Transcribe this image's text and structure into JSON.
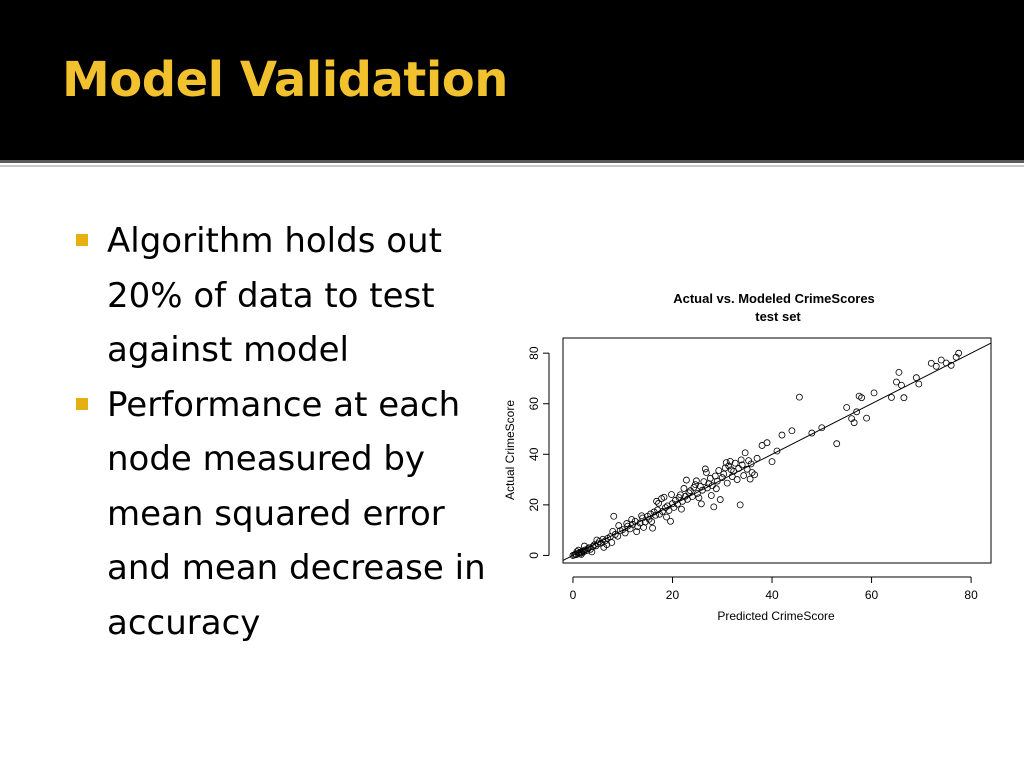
{
  "slide": {
    "title": "Model Validation",
    "title_color": "#f2c12e",
    "bullet_color": "#e6b012",
    "bullets": [
      "Algorithm holds out 20% of data to test against model",
      "Performance at each node measured by mean squared error and mean decrease in accuracy"
    ]
  },
  "chart_data": {
    "type": "scatter",
    "title": "Actual vs. Modeled CrimeScores",
    "subtitle": "test set",
    "xlabel": "Predicted CrimeScore",
    "ylabel": "Actual CrimeScore",
    "xlim": [
      -2,
      84
    ],
    "ylim": [
      -3,
      86
    ],
    "xticks": [
      0,
      20,
      40,
      60,
      80
    ],
    "yticks": [
      0,
      20,
      40,
      60,
      80
    ],
    "grid": false,
    "reference_line": {
      "slope": 1,
      "intercept": 0
    },
    "points": [
      [
        0,
        0
      ],
      [
        0.3,
        0.2
      ],
      [
        0.5,
        0.5
      ],
      [
        0.7,
        0.3
      ],
      [
        1,
        0.8
      ],
      [
        1.2,
        1
      ],
      [
        1.4,
        0.6
      ],
      [
        1.6,
        1.4
      ],
      [
        1.8,
        1.1
      ],
      [
        2,
        1.8
      ],
      [
        2.2,
        1.5
      ],
      [
        2.5,
        2.2
      ],
      [
        2.8,
        1.9
      ],
      [
        3,
        2.6
      ],
      [
        3.2,
        3
      ],
      [
        3.5,
        2.4
      ],
      [
        4,
        3.5
      ],
      [
        4.3,
        4.2
      ],
      [
        4.6,
        3.8
      ],
      [
        5,
        4.6
      ],
      [
        5.3,
        5.5
      ],
      [
        5.6,
        4.8
      ],
      [
        6,
        6.4
      ],
      [
        6.2,
        3.2
      ],
      [
        6.5,
        5.8
      ],
      [
        7,
        6.8
      ],
      [
        7.5,
        7.4
      ],
      [
        7.8,
        5.1
      ],
      [
        8,
        9.5
      ],
      [
        8.2,
        15.5
      ],
      [
        8.5,
        8.3
      ],
      [
        9,
        7.6
      ],
      [
        9.5,
        9.8
      ],
      [
        10,
        10.2
      ],
      [
        10.5,
        8.9
      ],
      [
        11,
        11.6
      ],
      [
        11.5,
        10.5
      ],
      [
        12,
        12.3
      ],
      [
        12.5,
        13.5
      ],
      [
        13,
        11.4
      ],
      [
        13.5,
        12.8
      ],
      [
        14,
        14.8
      ],
      [
        14.5,
        13.2
      ],
      [
        15,
        15.5
      ],
      [
        15.3,
        14.3
      ],
      [
        15.6,
        16.4
      ],
      [
        16,
        10.8
      ],
      [
        16.3,
        17.2
      ],
      [
        16.6,
        15.9
      ],
      [
        17,
        18
      ],
      [
        17.4,
        16.3
      ],
      [
        17.8,
        22.5
      ],
      [
        18,
        17.4
      ],
      [
        18.3,
        23
      ],
      [
        18.6,
        18.9
      ],
      [
        19,
        19.6
      ],
      [
        19.3,
        17.8
      ],
      [
        19.6,
        13.5
      ],
      [
        20,
        20.5
      ],
      [
        20.3,
        19
      ],
      [
        20.6,
        21.8
      ],
      [
        21,
        20.3
      ],
      [
        21.3,
        22.9
      ],
      [
        21.6,
        24
      ],
      [
        22,
        21.4
      ],
      [
        22.3,
        26.5
      ],
      [
        22.6,
        23.4
      ],
      [
        23,
        22.2
      ],
      [
        23.3,
        24.8
      ],
      [
        23.6,
        25.6
      ],
      [
        24,
        23.3
      ],
      [
        24.3,
        26.9
      ],
      [
        24.6,
        28
      ],
      [
        25,
        24.5
      ],
      [
        25.3,
        22.8
      ],
      [
        25.6,
        27.3
      ],
      [
        26,
        25.8
      ],
      [
        26.3,
        29.2
      ],
      [
        26.6,
        34.2
      ],
      [
        27,
        26.7
      ],
      [
        27.3,
        28.4
      ],
      [
        27.6,
        30.5
      ],
      [
        28,
        27.6
      ],
      [
        28.3,
        19.2
      ],
      [
        28.6,
        31.4
      ],
      [
        29,
        29.4
      ],
      [
        29.3,
        33.6
      ],
      [
        29.6,
        22.1
      ],
      [
        30,
        30.8
      ],
      [
        30.3,
        32.2
      ],
      [
        30.6,
        34.6
      ],
      [
        31,
        28.6
      ],
      [
        31.3,
        35.4
      ],
      [
        31.6,
        37.2
      ],
      [
        32,
        31.2
      ],
      [
        32.3,
        33.3
      ],
      [
        32.6,
        36.5
      ],
      [
        33,
        30
      ],
      [
        33.3,
        34.4
      ],
      [
        33.6,
        20
      ],
      [
        34,
        35.8
      ],
      [
        34.3,
        31.6
      ],
      [
        34.6,
        40.6
      ],
      [
        35,
        34.1
      ],
      [
        35.3,
        37.5
      ],
      [
        35.6,
        30.2
      ],
      [
        36,
        32.8
      ],
      [
        37,
        38.4
      ],
      [
        38,
        43.5
      ],
      [
        39,
        44.6
      ],
      [
        40,
        37.1
      ],
      [
        41,
        41.3
      ],
      [
        42,
        47.6
      ],
      [
        44,
        49.3
      ],
      [
        45.5,
        62.6
      ],
      [
        48,
        48.4
      ],
      [
        50,
        50.5
      ],
      [
        53,
        44.2
      ],
      [
        55,
        58.5
      ],
      [
        56,
        54.1
      ],
      [
        56.5,
        52.5
      ],
      [
        57,
        56.8
      ],
      [
        57.5,
        63
      ],
      [
        58,
        62.4
      ],
      [
        59,
        54.3
      ],
      [
        65,
        68.6
      ],
      [
        65.5,
        72.4
      ],
      [
        66,
        67.3
      ],
      [
        66.5,
        62.4
      ],
      [
        69,
        70.3
      ],
      [
        69.5,
        67.8
      ],
      [
        72,
        76
      ],
      [
        73,
        74.8
      ],
      [
        74,
        77.3
      ],
      [
        75,
        76.1
      ],
      [
        76,
        75.2
      ],
      [
        77,
        78.4
      ],
      [
        77.5,
        80
      ],
      [
        64,
        62.5
      ],
      [
        60.5,
        64.3
      ],
      [
        3.8,
        1.4
      ],
      [
        2.3,
        3.7
      ],
      [
        1.1,
        2.1
      ],
      [
        0.8,
        1.5
      ],
      [
        1.7,
        0.4
      ],
      [
        4.8,
        6.1
      ],
      [
        6.8,
        4.3
      ],
      [
        9.2,
        11.8
      ],
      [
        10.8,
        12.6
      ],
      [
        12.8,
        9.4
      ],
      [
        14.2,
        11.1
      ],
      [
        15.8,
        13.4
      ],
      [
        17.2,
        20.6
      ],
      [
        18.8,
        15.2
      ],
      [
        21.8,
        18.3
      ],
      [
        24.8,
        29.5
      ],
      [
        26.8,
        32.8
      ],
      [
        28.8,
        26.4
      ],
      [
        30.8,
        36.7
      ],
      [
        31.8,
        33.9
      ],
      [
        33.8,
        37.8
      ],
      [
        35.8,
        36.2
      ],
      [
        36.5,
        31.9
      ],
      [
        25.8,
        20.4
      ],
      [
        27.8,
        23.7
      ],
      [
        19.8,
        24.1
      ],
      [
        22.8,
        29.8
      ],
      [
        16.8,
        21.4
      ],
      [
        13.8,
        15.7
      ],
      [
        11.8,
        14.2
      ]
    ]
  }
}
